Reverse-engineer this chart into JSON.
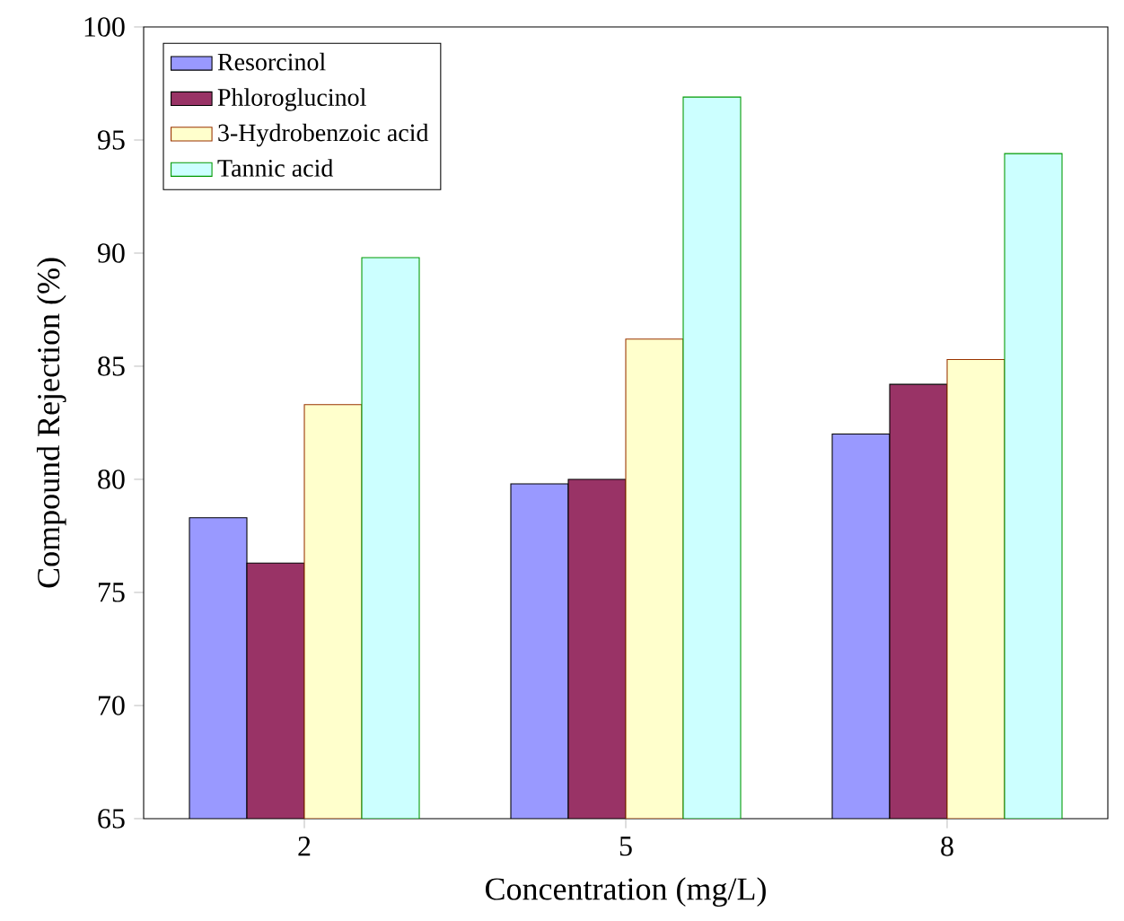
{
  "chart_data": {
    "type": "bar",
    "xlabel": "Concentration (mg/L)",
    "ylabel": "Compound Rejection (%)",
    "categories": [
      "2",
      "5",
      "8"
    ],
    "series": [
      {
        "name": "Resorcinol",
        "color": "#9999ff",
        "values": [
          78.3,
          79.8,
          82.0
        ]
      },
      {
        "name": "Phloroglucinol",
        "color": "#993366",
        "values": [
          76.3,
          80.0,
          84.2
        ]
      },
      {
        "name": "3-Hydrobenzoic acid",
        "color": "#ffffcc",
        "values": [
          83.3,
          86.2,
          85.3
        ]
      },
      {
        "name": "Tannic acid",
        "color": "#ccffff",
        "values": [
          89.8,
          96.9,
          94.4
        ]
      }
    ],
    "ylim": [
      65,
      100
    ],
    "yticks": [
      65,
      70,
      75,
      80,
      85,
      90,
      95,
      100
    ],
    "grid": false,
    "legend": "top left"
  }
}
